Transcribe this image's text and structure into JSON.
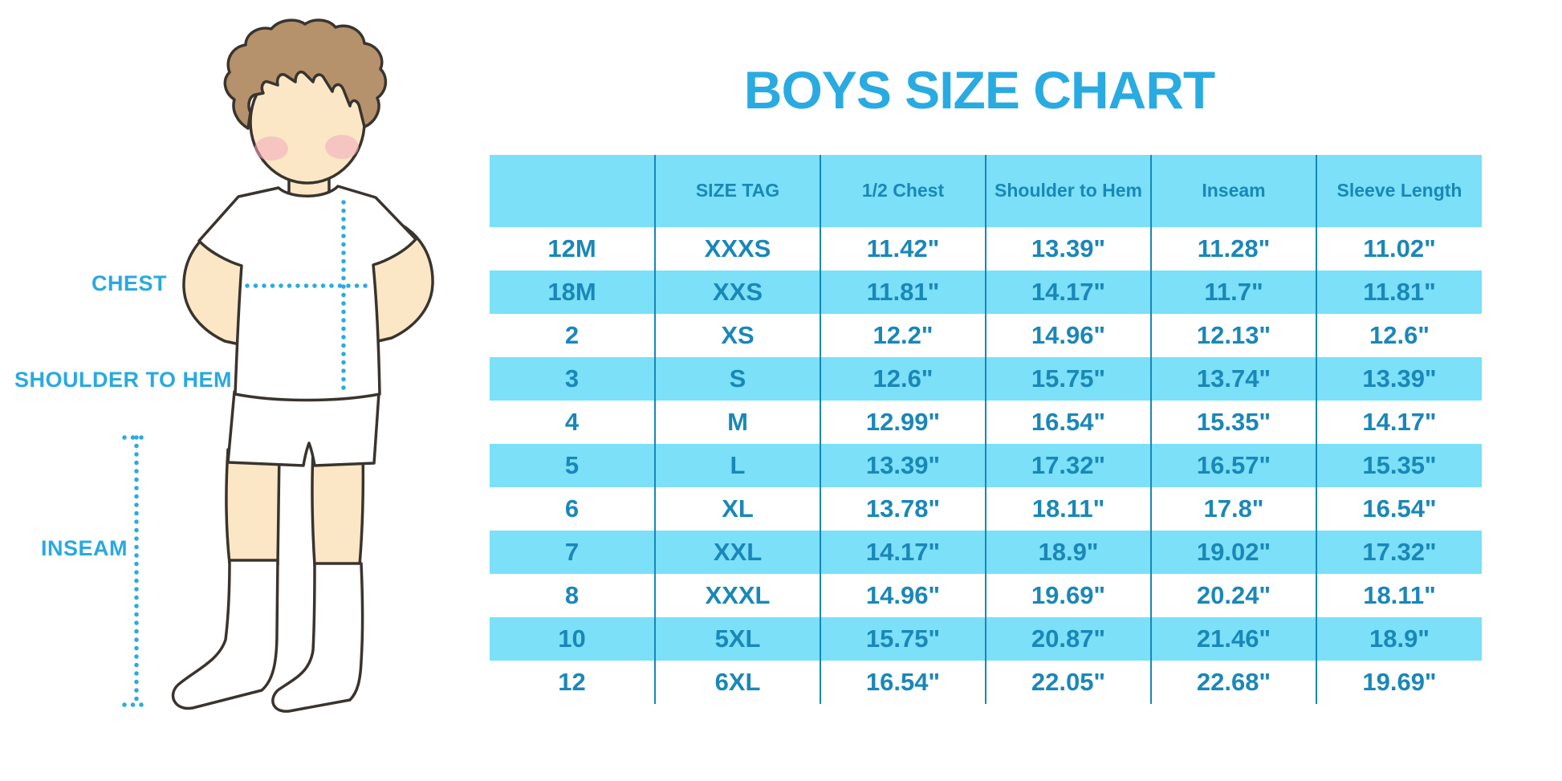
{
  "title": "BOYS SIZE CHART",
  "figure": {
    "chest_label": "CHEST",
    "shoulder_to_hem_label": "SHOULDER TO HEM",
    "inseam_label": "INSEAM"
  },
  "colors": {
    "title_blue": "#29ABE2",
    "band_cyan": "#7BE0F8",
    "grid_line_blue": "#1787B8",
    "table_text_blue": "#1A87B8",
    "dotted_measure_cyan": "#29ABE2",
    "skin": "#FBE7C5",
    "hair_brown": "#B5916C",
    "outline_dark": "#3A342E",
    "blush_pink": "#F2A9BE"
  },
  "chart_data": {
    "type": "table",
    "title": "BOYS SIZE CHART",
    "columns": [
      "",
      "SIZE TAG",
      "1/2 Chest",
      "Shoulder to Hem",
      "Inseam",
      "Sleeve Length"
    ],
    "rows": [
      [
        "12M",
        "XXXS",
        "11.42\"",
        "13.39\"",
        "11.28\"",
        "11.02\""
      ],
      [
        "18M",
        "XXS",
        "11.81\"",
        "14.17\"",
        "11.7\"",
        "11.81\""
      ],
      [
        "2",
        "XS",
        "12.2\"",
        "14.96\"",
        "12.13\"",
        "12.6\""
      ],
      [
        "3",
        "S",
        "12.6\"",
        "15.75\"",
        "13.74\"",
        "13.39\""
      ],
      [
        "4",
        "M",
        "12.99\"",
        "16.54\"",
        "15.35\"",
        "14.17\""
      ],
      [
        "5",
        "L",
        "13.39\"",
        "17.32\"",
        "16.57\"",
        "15.35\""
      ],
      [
        "6",
        "XL",
        "13.78\"",
        "18.11\"",
        "17.8\"",
        "16.54\""
      ],
      [
        "7",
        "XXL",
        "14.17\"",
        "18.9\"",
        "19.02\"",
        "17.32\""
      ],
      [
        "8",
        "XXXL",
        "14.96\"",
        "19.69\"",
        "20.24\"",
        "18.11\""
      ],
      [
        "10",
        "5XL",
        "15.75\"",
        "20.87\"",
        "21.46\"",
        "18.9\""
      ],
      [
        "12",
        "6XL",
        "16.54\"",
        "22.05\"",
        "22.68\"",
        "19.69\""
      ]
    ]
  }
}
